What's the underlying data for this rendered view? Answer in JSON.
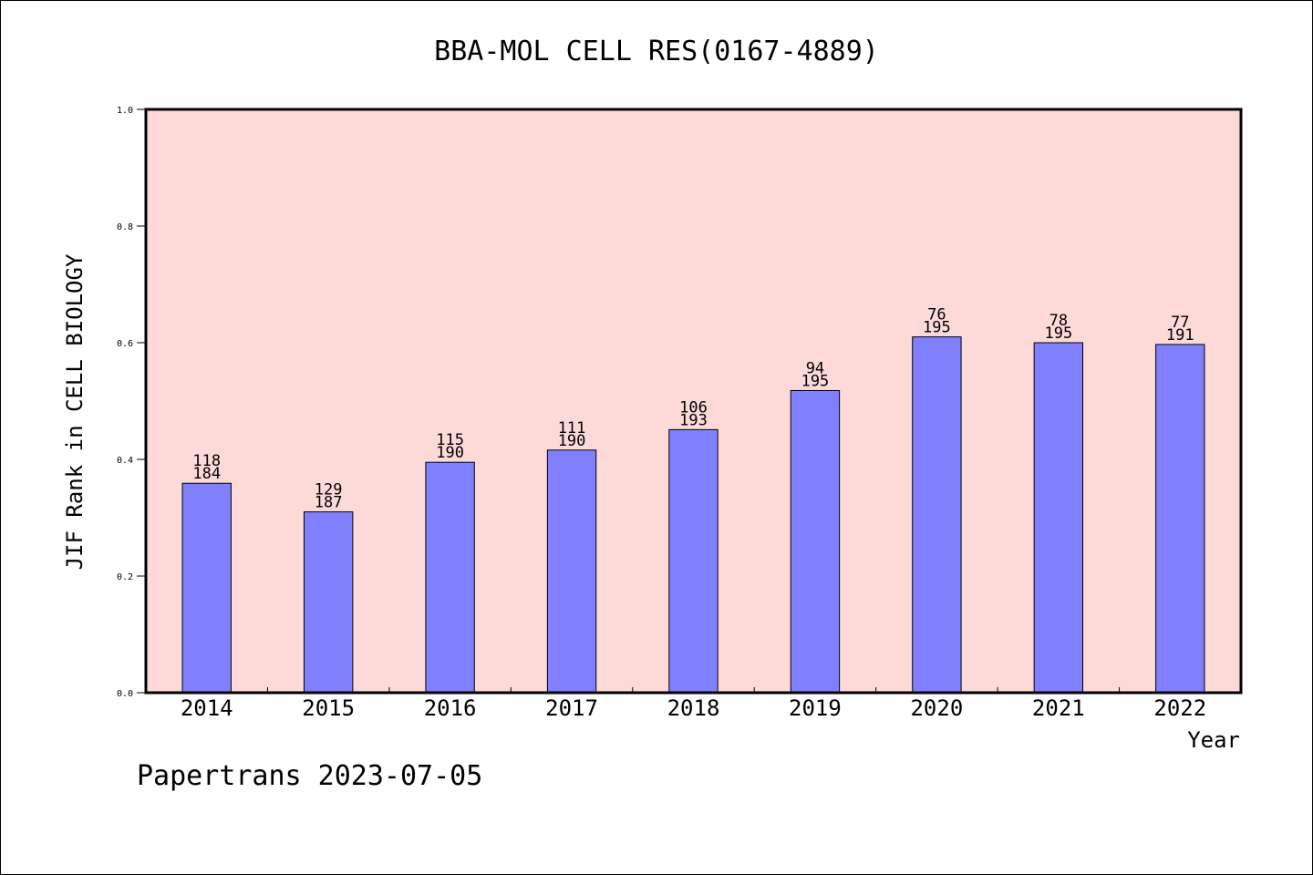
{
  "chart_data": {
    "type": "bar",
    "title": "BBA-MOL CELL RES(0167-4889)",
    "xlabel": "Year",
    "ylabel": "JIF Rank in CELL BIOLOGY",
    "ylim": [
      0.0,
      1.0
    ],
    "yticks": [
      "0.0",
      "0.2",
      "0.4",
      "0.6",
      "0.8",
      "1.0"
    ],
    "categories": [
      "2014",
      "2015",
      "2016",
      "2017",
      "2018",
      "2019",
      "2020",
      "2021",
      "2022"
    ],
    "values": [
      0.359,
      0.31,
      0.395,
      0.416,
      0.451,
      0.518,
      0.61,
      0.6,
      0.597
    ],
    "ranks": [
      "118",
      "129",
      "115",
      "111",
      "106",
      "94",
      "76",
      "78",
      "77"
    ],
    "totals": [
      "184",
      "187",
      "190",
      "190",
      "193",
      "195",
      "195",
      "195",
      "191"
    ],
    "grid": false,
    "colors": {
      "bar": "#8080ff",
      "plot_background": "#fddad7",
      "axis": "#000000"
    }
  },
  "footer": {
    "note": "Papertrans 2023-07-05"
  }
}
